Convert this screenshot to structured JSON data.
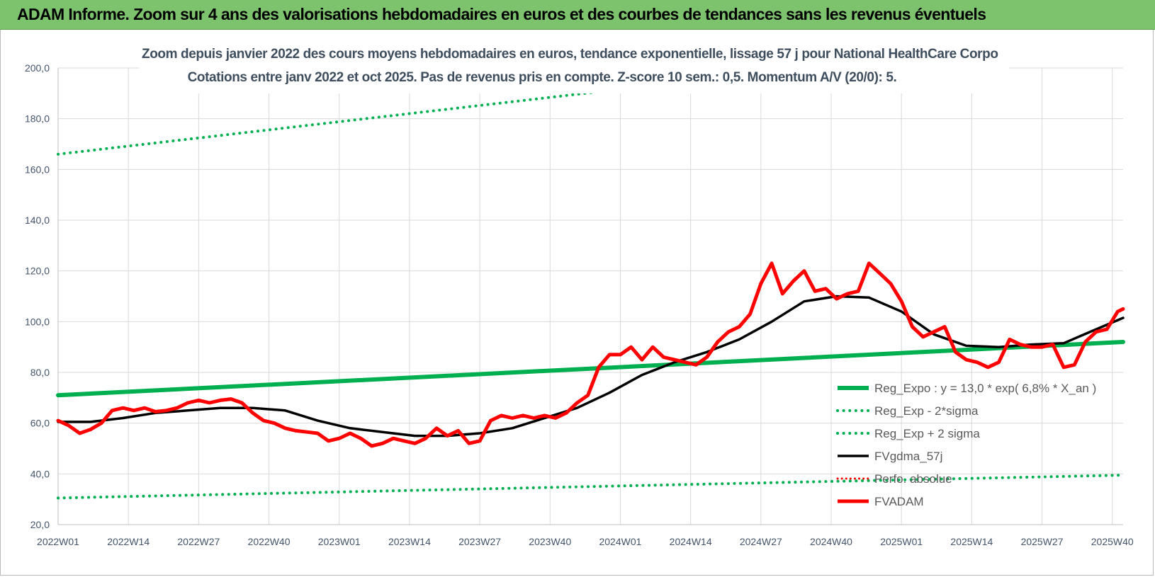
{
  "header": {
    "title": "ADAM Informe. Zoom sur 4 ans des valorisations hebdomadaires en euros et des courbes de tendances sans les revenus éventuels"
  },
  "colors": {
    "banner": "#7dc36e",
    "reg_expo": "#00b050",
    "fvgdma": "#000000",
    "fvadam": "#ff0000",
    "perfo": "#ff0000",
    "grid": "#d9d9d9",
    "axis_text": "#44546a"
  },
  "chart_data": {
    "type": "line",
    "title": "Zoom depuis janvier 2022 des cours moyens hebdomadaires en euros, tendance exponentielle, lissage 57 j pour National HealthCare Corpo",
    "subtitle": "Cotations entre janv 2022 et oct 2025. Pas de revenus pris en compte. Z-score 10 sem.: 0,5. Momentum A/V (20/0): 5.",
    "x_tick_labels": [
      "2022W01",
      "2022W14",
      "2022W27",
      "2022W40",
      "2023W01",
      "2023W14",
      "2023W27",
      "2023W40",
      "2024W01",
      "2024W14",
      "2024W27",
      "2024W40",
      "2025W01",
      "2025W14",
      "2025W27",
      "2025W40"
    ],
    "x_range": [
      0,
      197
    ],
    "y_tick_labels": [
      "20,0",
      "40,0",
      "60,0",
      "80,0",
      "100,0",
      "120,0",
      "140,0",
      "160,0",
      "180,0",
      "200,0"
    ],
    "ylim": [
      20,
      200
    ],
    "grid": true,
    "legend_position": "bottom-right",
    "series": [
      {
        "name": "Reg_Expo : y = 13,0 * exp( 6,8% *  X_an )",
        "style": "solid-thick",
        "x": [
          0,
          197
        ],
        "values": [
          71.0,
          92.0
        ]
      },
      {
        "name": "Reg_Exp - 2*sigma",
        "style": "dotted",
        "x": [
          0,
          197
        ],
        "values": [
          30.5,
          39.5
        ]
      },
      {
        "name": "Reg_Exp + 2 sigma",
        "style": "dotted",
        "x": [
          0,
          197
        ],
        "values": [
          166.0,
          214.5
        ]
      },
      {
        "name": "FVgdma_57j",
        "style": "solid",
        "x": [
          0,
          6,
          12,
          18,
          24,
          30,
          36,
          42,
          48,
          54,
          60,
          66,
          72,
          78,
          84,
          90,
          96,
          102,
          108,
          114,
          120,
          126,
          132,
          138,
          144,
          150,
          156,
          162,
          168,
          174,
          180,
          186,
          192,
          197
        ],
        "values": [
          60.5,
          60.5,
          62,
          64,
          65,
          66,
          66,
          65,
          61,
          58,
          56.5,
          55,
          55,
          56,
          58,
          62,
          66,
          72,
          79,
          84,
          88,
          93,
          100,
          108,
          110,
          109.5,
          104,
          95,
          90.5,
          90,
          91,
          91.5,
          97,
          101.5
        ]
      },
      {
        "name": "Perfo. absolue",
        "style": "dotted",
        "x": [],
        "values": []
      },
      {
        "name": "FVADAM",
        "style": "solid-thick",
        "x": [
          0,
          2,
          4,
          6,
          8,
          10,
          12,
          14,
          16,
          18,
          20,
          22,
          24,
          26,
          28,
          30,
          32,
          34,
          36,
          38,
          40,
          42,
          44,
          46,
          48,
          50,
          52,
          54,
          56,
          58,
          60,
          62,
          64,
          66,
          68,
          70,
          72,
          74,
          76,
          78,
          80,
          82,
          84,
          86,
          88,
          90,
          92,
          94,
          96,
          98,
          100,
          102,
          104,
          106,
          108,
          110,
          112,
          114,
          116,
          118,
          120,
          122,
          124,
          126,
          128,
          130,
          132,
          134,
          136,
          138,
          140,
          142,
          144,
          146,
          148,
          150,
          152,
          154,
          156,
          158,
          160,
          162,
          164,
          166,
          168,
          170,
          172,
          174,
          176,
          178,
          180,
          182,
          184,
          186,
          188,
          190,
          192,
          194,
          196,
          197
        ],
        "values": [
          61,
          59,
          56,
          57.5,
          60,
          65,
          66,
          65,
          66,
          64.5,
          65,
          66,
          68,
          69,
          68,
          69,
          69.5,
          68,
          64,
          61,
          60,
          58,
          57,
          56.5,
          56,
          53,
          54,
          56,
          54,
          51,
          52,
          54,
          53,
          52,
          54,
          58,
          55,
          57,
          52,
          53,
          61,
          63,
          62,
          63,
          62,
          63,
          62,
          64,
          68,
          71,
          82,
          87,
          87,
          90,
          85,
          90,
          86,
          85,
          84,
          83,
          86,
          92,
          96,
          98,
          103,
          115,
          123,
          111,
          116,
          120,
          112,
          113,
          109,
          111,
          112,
          123,
          119,
          115,
          108,
          98,
          94,
          96,
          98,
          88,
          85,
          84,
          82,
          84,
          93,
          91,
          90,
          90,
          91,
          82,
          83,
          92,
          96,
          97,
          104,
          105
        ]
      }
    ]
  }
}
